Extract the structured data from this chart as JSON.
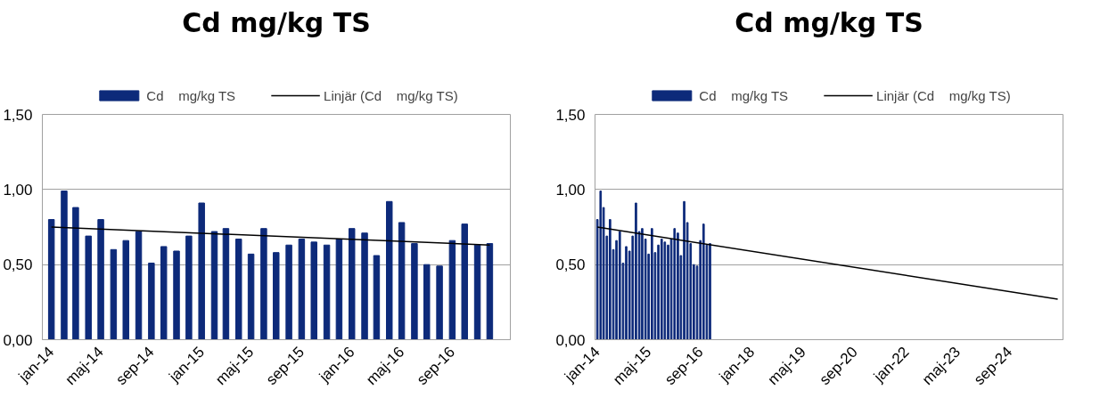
{
  "chart_data": [
    {
      "type": "bar",
      "title": "Cd mg/kg TS",
      "x": [
        "2014-01",
        "2014-02",
        "2014-03",
        "2014-04",
        "2014-05",
        "2014-06",
        "2014-07",
        "2014-08",
        "2014-09",
        "2014-10",
        "2014-11",
        "2014-12",
        "2015-01",
        "2015-02",
        "2015-03",
        "2015-04",
        "2015-05",
        "2015-06",
        "2015-07",
        "2015-08",
        "2015-09",
        "2015-10",
        "2015-11",
        "2015-12",
        "2016-01",
        "2016-02",
        "2016-03",
        "2016-04",
        "2016-05",
        "2016-06",
        "2016-07",
        "2016-08",
        "2016-09",
        "2016-10",
        "2016-11",
        "2016-12"
      ],
      "series": [
        {
          "name": "Cd    mg/kg TS",
          "color": "#0d2a7a",
          "values": [
            0.8,
            0.99,
            0.88,
            0.69,
            0.8,
            0.6,
            0.66,
            0.72,
            0.51,
            0.62,
            0.59,
            0.69,
            0.91,
            0.72,
            0.74,
            0.67,
            0.57,
            0.74,
            0.58,
            0.63,
            0.67,
            0.65,
            0.63,
            0.67,
            0.74,
            0.71,
            0.56,
            0.92,
            0.78,
            0.64,
            0.5,
            0.49,
            0.66,
            0.77,
            0.63,
            0.64
          ]
        },
        {
          "type": "line",
          "name": "Linjär (Cd    mg/kg TS)",
          "color": "#000000",
          "x": [
            "2014-01",
            "2016-12"
          ],
          "values": [
            0.75,
            0.63
          ]
        }
      ],
      "xlim": [
        "2013-12-10",
        "2017-01-20"
      ],
      "xticks": [
        {
          "value": "2014-01",
          "label": "jan-14"
        },
        {
          "value": "2014-05",
          "label": "maj-14"
        },
        {
          "value": "2014-09",
          "label": "sep-14"
        },
        {
          "value": "2015-01",
          "label": "jan-15"
        },
        {
          "value": "2015-05",
          "label": "maj-15"
        },
        {
          "value": "2015-09",
          "label": "sep-15"
        },
        {
          "value": "2016-01",
          "label": "jan-16"
        },
        {
          "value": "2016-05",
          "label": "maj-16"
        },
        {
          "value": "2016-09",
          "label": "sep-16"
        }
      ],
      "ylim": [
        0,
        1.5
      ],
      "yticks": [
        {
          "value": 0,
          "label": "0,00"
        },
        {
          "value": 0.5,
          "label": "0,50"
        },
        {
          "value": 1,
          "label": "1,00"
        },
        {
          "value": 1.5,
          "label": "1,50"
        }
      ],
      "grid": "y",
      "legend": "top"
    },
    {
      "type": "bar",
      "title": "Cd mg/kg TS",
      "x": [
        "2014-01",
        "2014-02",
        "2014-03",
        "2014-04",
        "2014-05",
        "2014-06",
        "2014-07",
        "2014-08",
        "2014-09",
        "2014-10",
        "2014-11",
        "2014-12",
        "2015-01",
        "2015-02",
        "2015-03",
        "2015-04",
        "2015-05",
        "2015-06",
        "2015-07",
        "2015-08",
        "2015-09",
        "2015-10",
        "2015-11",
        "2015-12",
        "2016-01",
        "2016-02",
        "2016-03",
        "2016-04",
        "2016-05",
        "2016-06",
        "2016-07",
        "2016-08",
        "2016-09",
        "2016-10",
        "2016-11",
        "2016-12"
      ],
      "series": [
        {
          "name": "Cd    mg/kg TS",
          "color": "#0d2a7a",
          "values": [
            0.8,
            0.99,
            0.88,
            0.69,
            0.8,
            0.6,
            0.66,
            0.72,
            0.51,
            0.62,
            0.59,
            0.69,
            0.91,
            0.72,
            0.74,
            0.67,
            0.57,
            0.74,
            0.58,
            0.63,
            0.67,
            0.65,
            0.63,
            0.67,
            0.74,
            0.71,
            0.56,
            0.92,
            0.78,
            0.64,
            0.5,
            0.49,
            0.66,
            0.77,
            0.63,
            0.64
          ]
        },
        {
          "type": "line",
          "name": "Linjär (Cd    mg/kg TS)",
          "color": "#000000",
          "x": [
            "2014-01",
            "2025-12"
          ],
          "values": [
            0.75,
            0.27
          ]
        }
      ],
      "xlim": [
        "2013-12-10",
        "2026-01-20"
      ],
      "xticks": [
        {
          "value": "2014-01",
          "label": "jan-14"
        },
        {
          "value": "2015-05",
          "label": "maj-15"
        },
        {
          "value": "2016-09",
          "label": "sep-16"
        },
        {
          "value": "2018-01",
          "label": "jan-18"
        },
        {
          "value": "2019-05",
          "label": "maj-19"
        },
        {
          "value": "2020-09",
          "label": "sep-20"
        },
        {
          "value": "2022-01",
          "label": "jan-22"
        },
        {
          "value": "2023-05",
          "label": "maj-23"
        },
        {
          "value": "2024-09",
          "label": "sep-24"
        }
      ],
      "ylim": [
        0,
        1.5
      ],
      "yticks": [
        {
          "value": 0,
          "label": "0,00"
        },
        {
          "value": 0.5,
          "label": "0,50"
        },
        {
          "value": 1,
          "label": "1,00"
        },
        {
          "value": 1.5,
          "label": "1,50"
        }
      ],
      "grid": "y",
      "legend": "top"
    }
  ]
}
